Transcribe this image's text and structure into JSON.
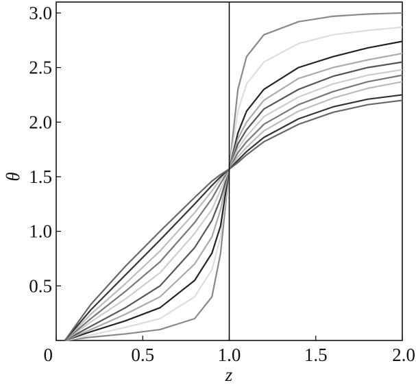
{
  "chart_data": {
    "type": "line",
    "xlabel": "z",
    "ylabel": "θ",
    "x": [
      0.05,
      0.2,
      0.4,
      0.6,
      0.8,
      0.9,
      0.95,
      1.0,
      1.05,
      1.1,
      1.2,
      1.4,
      1.6,
      1.8,
      2.0
    ],
    "xlim": [
      0,
      2
    ],
    "ylim": [
      0,
      3.1
    ],
    "xticks": [
      0,
      0.5,
      {
        "value": 1,
        "label": "1.0"
      },
      1.5,
      {
        "value": 2,
        "label": "2.0"
      }
    ],
    "yticks": [
      0.5,
      {
        "value": 1,
        "label": "1.0"
      },
      1.5,
      {
        "value": 2,
        "label": "2.0"
      },
      2.5,
      {
        "value": 3,
        "label": "3.0"
      }
    ],
    "vline_x": 1,
    "vline_color": "#000000",
    "series": [
      {
        "color": "#888888",
        "values": [
          0,
          0.03,
          0.06,
          0.1,
          0.2,
          0.4,
          0.8,
          1.57,
          2.3,
          2.6,
          2.8,
          2.92,
          2.97,
          2.99,
          3.0
        ]
      },
      {
        "color": "#dddddd",
        "values": [
          0,
          0.05,
          0.12,
          0.2,
          0.4,
          0.65,
          0.95,
          1.57,
          2.1,
          2.35,
          2.55,
          2.72,
          2.8,
          2.84,
          2.87
        ]
      },
      {
        "color": "#222222",
        "values": [
          0,
          0.08,
          0.18,
          0.3,
          0.55,
          0.8,
          1.05,
          1.57,
          1.9,
          2.1,
          2.3,
          2.5,
          2.6,
          2.68,
          2.74
        ]
      },
      {
        "color": "#aaaaaa",
        "values": [
          0,
          0.1,
          0.24,
          0.4,
          0.7,
          0.95,
          1.2,
          1.57,
          1.85,
          2.0,
          2.2,
          2.4,
          2.5,
          2.57,
          2.63
        ]
      },
      {
        "color": "#555555",
        "values": [
          0,
          0.13,
          0.3,
          0.5,
          0.85,
          1.1,
          1.3,
          1.57,
          1.8,
          1.93,
          2.12,
          2.3,
          2.42,
          2.5,
          2.55
        ]
      },
      {
        "color": "#cccccc",
        "values": [
          0,
          0.17,
          0.38,
          0.62,
          0.98,
          1.2,
          1.38,
          1.57,
          1.76,
          1.87,
          2.05,
          2.23,
          2.35,
          2.43,
          2.48
        ]
      },
      {
        "color": "#777777",
        "values": [
          0,
          0.2,
          0.45,
          0.72,
          1.08,
          1.3,
          1.44,
          1.57,
          1.72,
          1.82,
          1.98,
          2.16,
          2.28,
          2.37,
          2.43
        ]
      },
      {
        "color": "#bbbbbb",
        "values": [
          0,
          0.24,
          0.52,
          0.82,
          1.17,
          1.37,
          1.48,
          1.57,
          1.68,
          1.77,
          1.92,
          2.1,
          2.22,
          2.31,
          2.37
        ]
      },
      {
        "color": "#333333",
        "values": [
          0,
          0.28,
          0.6,
          0.92,
          1.25,
          1.42,
          1.5,
          1.57,
          1.65,
          1.73,
          1.86,
          2.03,
          2.14,
          2.21,
          2.25
        ]
      },
      {
        "color": "#666666",
        "values": [
          0,
          0.33,
          0.68,
          1.0,
          1.31,
          1.46,
          1.52,
          1.57,
          1.63,
          1.7,
          1.82,
          1.98,
          2.09,
          2.16,
          2.2
        ]
      }
    ]
  }
}
